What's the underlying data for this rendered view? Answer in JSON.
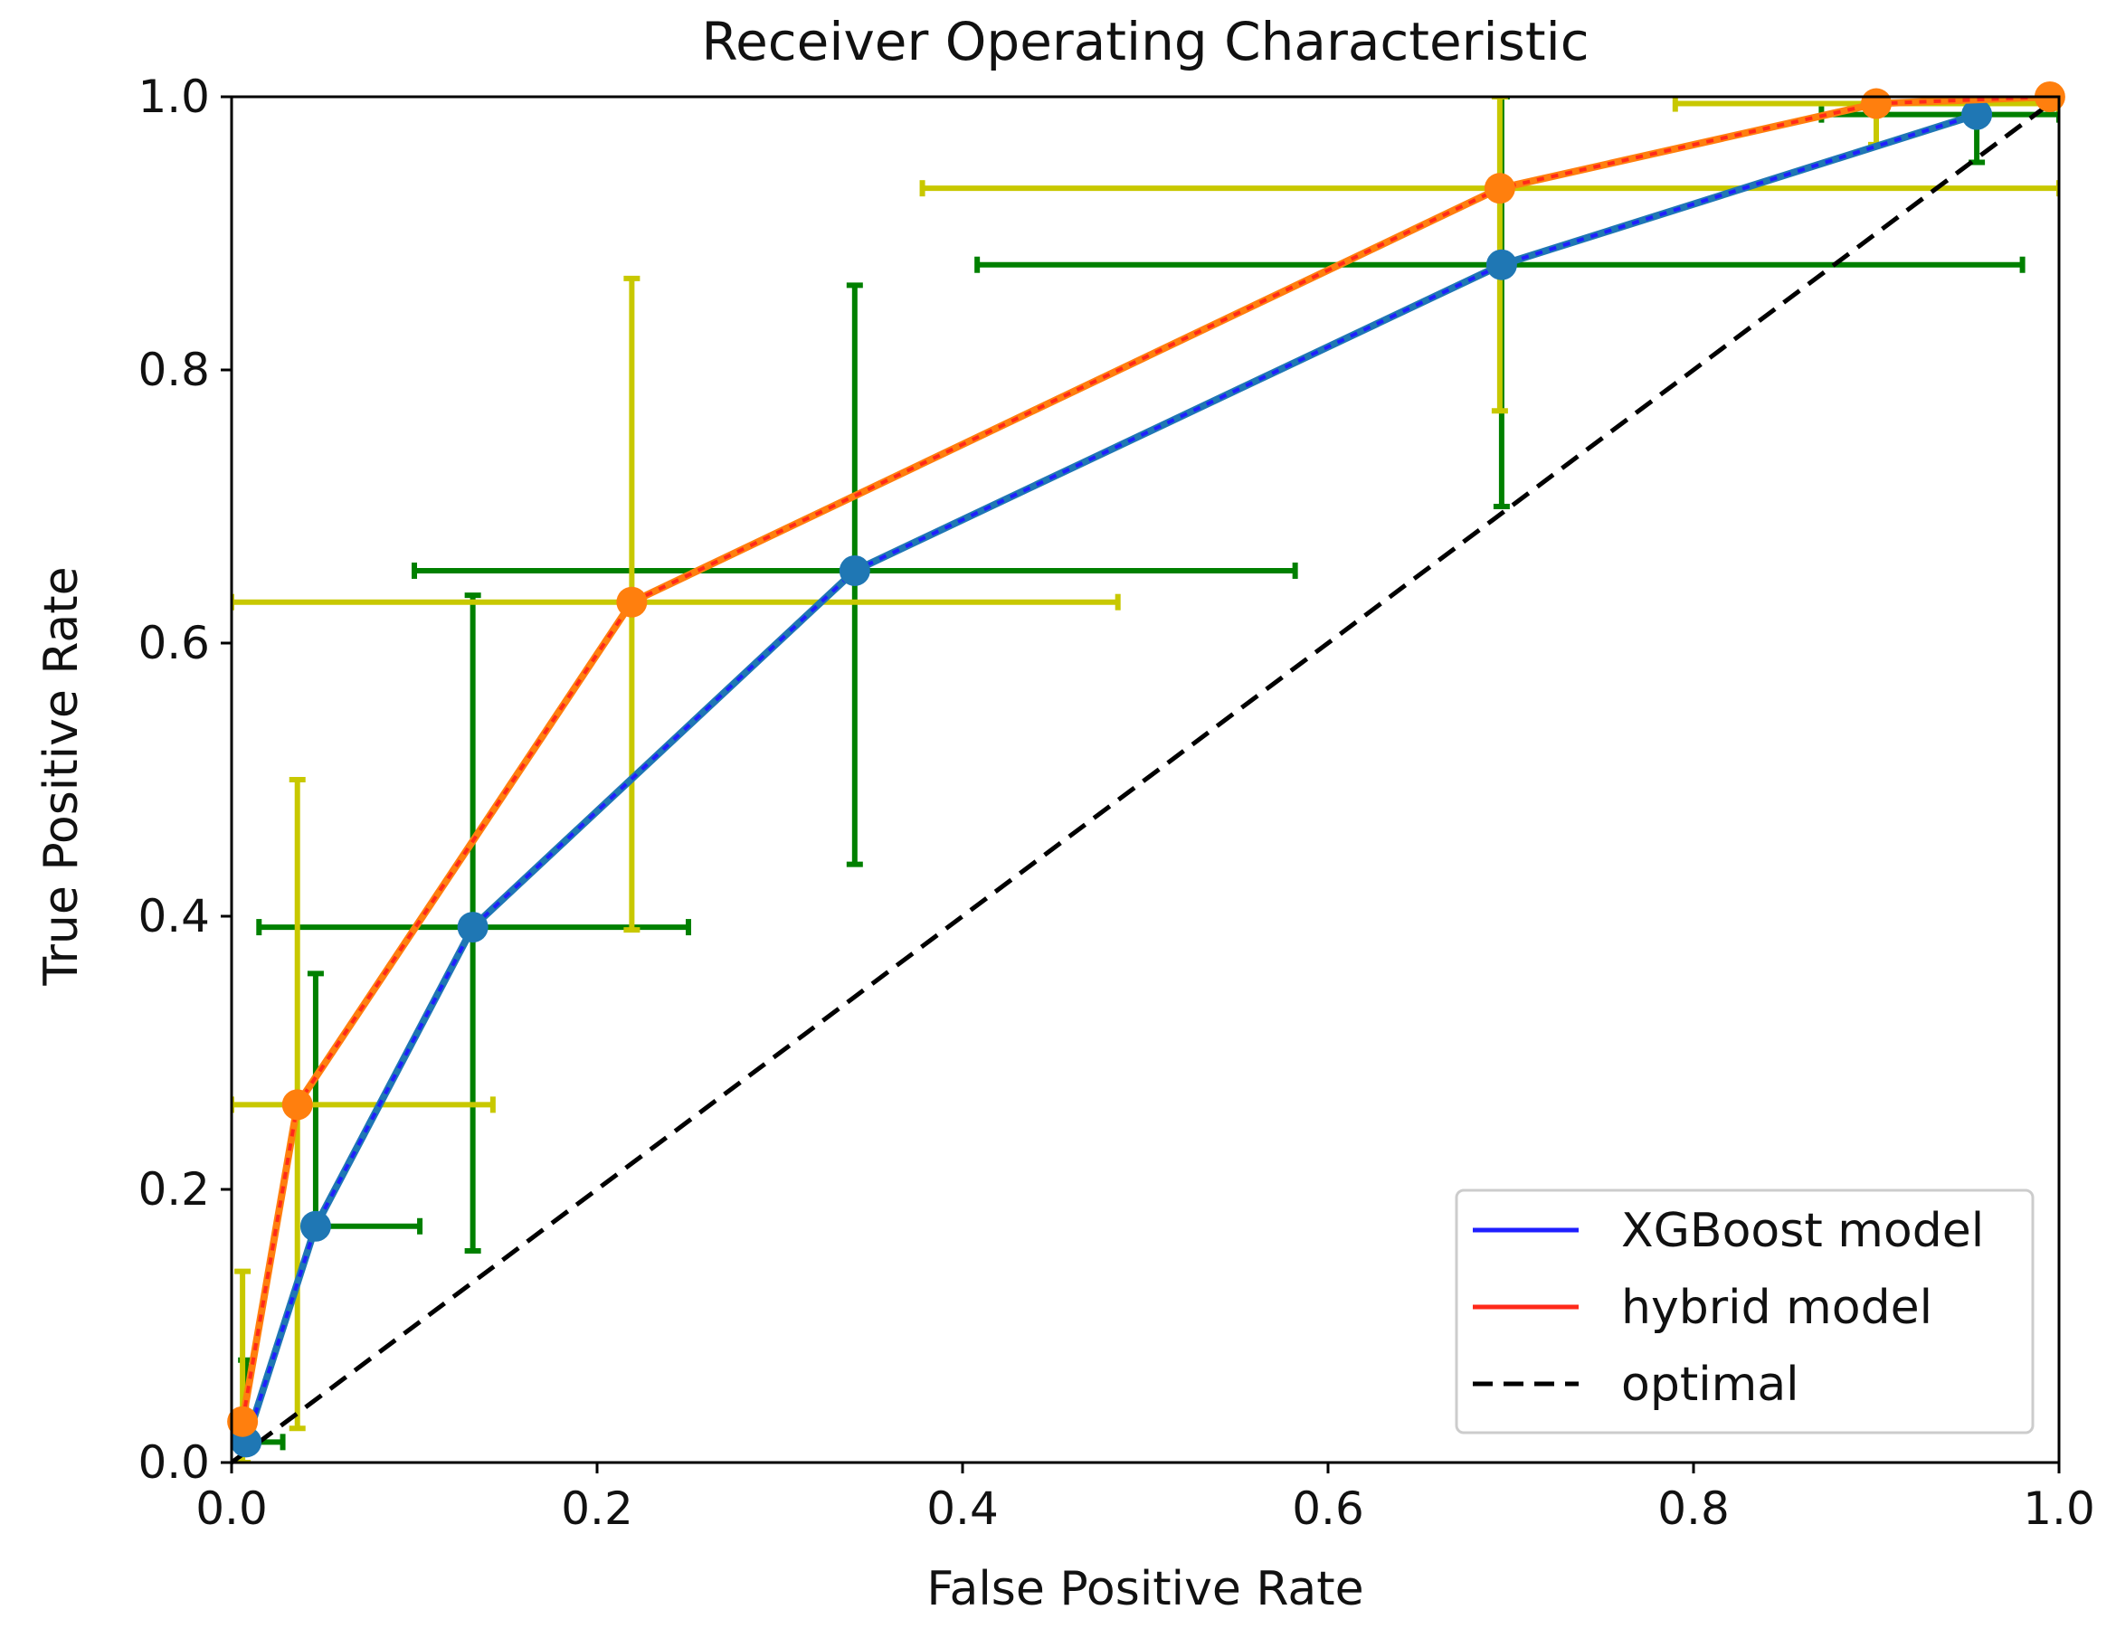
{
  "chart_data": {
    "type": "line",
    "title": "Receiver Operating Characteristic",
    "xlabel": "False Positive Rate",
    "ylabel": "True Positive Rate",
    "xlim": [
      0,
      1
    ],
    "ylim": [
      0,
      1
    ],
    "x_ticks": [
      0.0,
      0.2,
      0.4,
      0.6,
      0.8,
      1.0
    ],
    "y_ticks": [
      0.0,
      0.2,
      0.4,
      0.6,
      0.8,
      1.0
    ],
    "x_tick_labels": [
      "0.0",
      "0.2",
      "0.4",
      "0.6",
      "0.8",
      "1.0"
    ],
    "y_tick_labels": [
      "0.0",
      "0.2",
      "0.4",
      "0.6",
      "0.8",
      "1.0"
    ],
    "grid": false,
    "legend_position": "bottom-right",
    "series": [
      {
        "name": "XGBoost model",
        "line_color": "#1f1fff",
        "marker_color": "#1f77b4",
        "error_color": "#008000",
        "points": [
          {
            "x": 0.008,
            "y": 0.015,
            "xerr": [
              0.0,
              0.028
            ],
            "yerr": [
              0.015,
              0.075
            ]
          },
          {
            "x": 0.046,
            "y": 0.173,
            "xerr": [
              0.046,
              0.103
            ],
            "yerr": [
              0.173,
              0.358
            ]
          },
          {
            "x": 0.132,
            "y": 0.392,
            "xerr": [
              0.015,
              0.25
            ],
            "yerr": [
              0.155,
              0.635
            ]
          },
          {
            "x": 0.341,
            "y": 0.653,
            "xerr": [
              0.1,
              0.582
            ],
            "yerr": [
              0.438,
              0.862
            ]
          },
          {
            "x": 0.695,
            "y": 0.877,
            "xerr": [
              0.408,
              0.98
            ],
            "yerr": [
              0.7,
              1.0
            ]
          },
          {
            "x": 0.955,
            "y": 0.987,
            "xerr": [
              0.87,
              1.0
            ],
            "yerr": [
              0.952,
              1.0
            ]
          }
        ]
      },
      {
        "name": "hybrid model",
        "line_color": "#ff2a1a",
        "marker_color": "#ff7f0e",
        "error_color": "#c8c800",
        "points": [
          {
            "x": 0.006,
            "y": 0.03,
            "xerr": [
              0.0,
              0.012
            ],
            "yerr": [
              0.0,
              0.14
            ]
          },
          {
            "x": 0.036,
            "y": 0.262,
            "xerr": [
              0.0,
              0.143
            ],
            "yerr": [
              0.025,
              0.5
            ]
          },
          {
            "x": 0.219,
            "y": 0.63,
            "xerr": [
              0.0,
              0.485
            ],
            "yerr": [
              0.39,
              0.867
            ]
          },
          {
            "x": 0.694,
            "y": 0.933,
            "xerr": [
              0.378,
              1.0
            ],
            "yerr": [
              0.77,
              1.0
            ]
          },
          {
            "x": 0.9,
            "y": 0.995,
            "xerr": [
              0.79,
              1.0
            ],
            "yerr": [
              0.965,
              1.0
            ]
          },
          {
            "x": 0.995,
            "y": 1.0,
            "xerr": [
              0.99,
              1.0
            ],
            "yerr": [
              1.0,
              1.0
            ]
          }
        ]
      },
      {
        "name": "optimal",
        "line_color": "#000000",
        "dashed": true,
        "points": [
          {
            "x": 0,
            "y": 0
          },
          {
            "x": 1,
            "y": 1
          }
        ]
      }
    ]
  }
}
